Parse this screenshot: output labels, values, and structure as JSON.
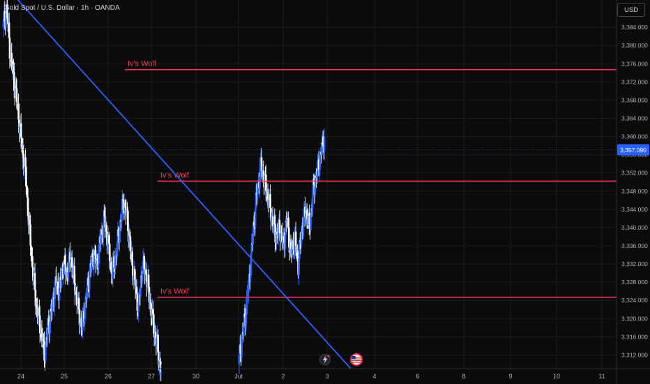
{
  "header": {
    "symbol_title": "Gold Spot / U.S. Dollar · 1h · OANDA"
  },
  "price_scale": {
    "currency": "USD"
  },
  "current_price": {
    "label": "3,357.090",
    "value": 3357.09,
    "color": "#2962ff"
  },
  "colors": {
    "up": "#2962ff",
    "down": "#ffffff",
    "level": "#f23658",
    "trend": "#2962ff",
    "grid": "#1b1d23",
    "background": "#0b0b0b"
  },
  "icons": [
    "lightning-event-icon",
    "us-flag-event-icon"
  ],
  "chart_data": {
    "type": "candlestick",
    "title": "Gold Spot / U.S. Dollar · 1h · OANDA",
    "ylim": [
      3309,
      3390
    ],
    "y_ticks": [
      "3,312.000",
      "3,316.000",
      "3,320.000",
      "3,324.000",
      "3,328.000",
      "3,332.000",
      "3,336.000",
      "3,340.000",
      "3,344.000",
      "3,348.000",
      "3,352.000",
      "3,356.000",
      "3,360.000",
      "3,364.000",
      "3,368.000",
      "3,372.000",
      "3,376.000",
      "3,380.000",
      "3,384.000"
    ],
    "x_ticks": [
      "24",
      "25",
      "26",
      "27",
      "30",
      "Jul",
      "2",
      "3",
      "4",
      "6",
      "8",
      "9",
      "10",
      "11"
    ],
    "price_series": [
      {
        "segment": 1,
        "points": [
          3384,
          3388,
          3378,
          3372,
          3366,
          3358,
          3352,
          3340,
          3330,
          3322,
          3318,
          3312,
          3318,
          3322,
          3328,
          3326,
          3332,
          3330,
          3334,
          3328,
          3322,
          3318,
          3324,
          3330,
          3334,
          3332,
          3338,
          3342,
          3336,
          3330,
          3334,
          3340,
          3346,
          3342,
          3334,
          3328,
          3322,
          3332,
          3330,
          3324,
          3318,
          3314,
          3308
        ]
      },
      {
        "segment": 2,
        "points": [
          3310,
          3316,
          3322,
          3330,
          3340,
          3348,
          3354,
          3350,
          3346,
          3342,
          3338,
          3340,
          3336,
          3342,
          3334,
          3338,
          3332,
          3340,
          3344,
          3340,
          3348,
          3352,
          3356,
          3360
        ]
      }
    ],
    "horizontal_levels": [
      {
        "label": "Iv's Wolf",
        "price": 3374.7
      },
      {
        "label": "Iv's Wolf",
        "price": 3350.2
      },
      {
        "label": "Iv's Wolf",
        "price": 3324.7
      }
    ],
    "trendline": {
      "from": {
        "x": "24",
        "price": 3392
      },
      "to": {
        "x": "4",
        "price": 3309
      }
    },
    "grid": true
  }
}
